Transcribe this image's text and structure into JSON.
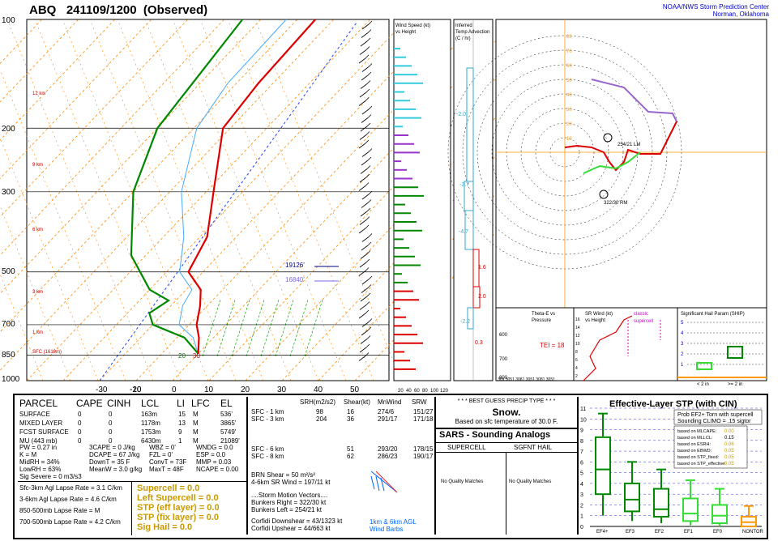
{
  "header": {
    "title": "ABQ   241109/1200  (Observed)",
    "org_line1": "NOAA/NWS Storm Prediction Center",
    "org_line2": "Norman, Oklahoma"
  },
  "skewt": {
    "pressure_labels": [
      "100",
      "200",
      "300",
      "500",
      "700",
      "850",
      "1000"
    ],
    "temp_labels": [
      "-30",
      "-20",
      "-10",
      "0",
      "10",
      "20",
      "30",
      "40",
      "50"
    ],
    "height_labels": [
      "12 km",
      "9 km",
      "6 km",
      "3 km",
      "1 km",
      "SFC (1619m)"
    ],
    "sfc_dewpoint": "20",
    "sfc_temp": "30",
    "legend": [
      {
        "value": "19126'",
        "color": "#00008b"
      },
      {
        "value": "16840'",
        "color": "#7b68ee"
      }
    ]
  },
  "wind_panel": {
    "title_line1": "Wind Speed (kt)",
    "title_line2": "vs Height",
    "axis": [
      "20",
      "40",
      "60",
      "80",
      "100",
      "120"
    ]
  },
  "advection_panel": {
    "title_line1": "Inferred",
    "title_line2": "Temp Advection",
    "title_line3": "(C / hr)",
    "values": [
      "-2.0",
      "-2.7",
      "-4.7",
      "1.6",
      "2.0",
      "-2.2",
      "0.3"
    ]
  },
  "hodograph": {
    "ring_labels": [
      "10",
      "20",
      "30",
      "40",
      "50",
      "60",
      "70",
      "80"
    ],
    "bunkers_left": "254/21 LM",
    "bunkers_right": "322/30 RM",
    "marks": [
      "2",
      "3",
      "4",
      "6",
      "7",
      "8",
      "9",
      "10",
      "1"
    ]
  },
  "theta_panel": {
    "title_line1": "Theta-E vs",
    "title_line2": "Pressure",
    "tei": "TEI = 18",
    "ticks": [
      "600",
      "700",
      "800"
    ],
    "bottom": "309 3051 3081 3051 3081 3051"
  },
  "srwind_panel": {
    "title_line1": "SR Wind (kt)",
    "title_line2": "vs Height",
    "classic": "classic",
    "supercell": "supercell",
    "ticks": [
      "16",
      "14",
      "12",
      "10",
      "8",
      "6",
      "4",
      "2"
    ]
  },
  "ship_panel": {
    "title": "Significant Hail Param (SHIP)",
    "ticks": [
      "5",
      "4",
      "3",
      "2",
      "1"
    ],
    "xlabels": [
      "< 2 in",
      ">= 2 in"
    ]
  },
  "parcel_table": {
    "headers": [
      "PARCEL",
      "CAPE",
      "CINH",
      "LCL",
      "LI",
      "LFC",
      "EL"
    ],
    "rows": [
      [
        "SURFACE",
        "0",
        "0",
        "163m",
        "15",
        "M",
        "536'"
      ],
      [
        "MIXED LAYER",
        "0",
        "0",
        "1178m",
        "13",
        "M",
        "3865'"
      ],
      [
        "FCST SURFACE",
        "0",
        "0",
        "1753m",
        "9",
        "M",
        "5749'"
      ],
      [
        "MU   (443 mb)",
        "0",
        "0",
        "6430m",
        "1",
        "M",
        "21089'"
      ]
    ],
    "params": [
      [
        "PW = 0.27 in",
        "3CAPE = 0 J/kg",
        "WNDG = 0.0"
      ],
      [
        "K = M",
        "DCAPE = 67 J/kg",
        "ESP = 0.0"
      ],
      [
        "MidRH = 34%",
        "DownT = 35 F",
        "MMP = 0.03"
      ],
      [
        "LowRH = 63%",
        "MeanW = 3.0 g/kg",
        "NCAPE = 0.00"
      ]
    ],
    "params_mid": [
      "WBZ = 0'",
      "FZL = 0'",
      "ConvT = 73F",
      "MaxT = 48F"
    ],
    "sig_severe": "Sig Severe = 0 m3/s3",
    "lapse": [
      "Sfc-3km Agl Lapse Rate = 3.1 C/km",
      "3-6km Agl Lapse Rate =   4.6 C/km",
      "850-500mb Lapse Rate =   M",
      "700-500mb Lapse Rate =  4.2 C/km"
    ],
    "composite": [
      "Supercell = 0.0",
      "Left Supercell = 0.0",
      "STP (eff layer) = 0.0",
      "STP (fix layer) = 0.0",
      "Sig Hail = 0.0"
    ]
  },
  "kinematic": {
    "headers": [
      "SRH(m2/s2)",
      "Shear(kt)",
      "MnWind",
      "SRW"
    ],
    "rows": [
      [
        "SFC - 1 km",
        "98",
        "16",
        "274/6",
        "151/27"
      ],
      [
        "SFC - 3 km",
        "204",
        "36",
        "291/17",
        "171/18"
      ],
      [
        "SFC - 6 km",
        "",
        "51",
        "293/20",
        "178/15"
      ],
      [
        "SFC - 8 km",
        "",
        "62",
        "286/23",
        "190/17"
      ]
    ],
    "brn_shear": "BRN Shear =  50 m²/s²",
    "sr_wind": "4-6km SR Wind =        197/11 kt",
    "storm_motion_title": "....Storm Motion Vectors....",
    "bunkers_right": "Bunkers Right =      322/30 kt",
    "bunkers_left": "Bunkers Left =        254/21 kt",
    "corfidi_down": "Corfidi Downshear = 43/1323 kt",
    "corfidi_up": "Corfidi Upshear =      44/663 kt",
    "barb_label_1": "1km & 6km AGL",
    "barb_label_2": "Wind Barbs"
  },
  "precip": {
    "title": "* * * BEST GUESS PRECIP TYPE * * *",
    "type": "Snow.",
    "note": "Based on sfc temperature of 30.0 F."
  },
  "sars": {
    "title": "SARS - Sounding Analogs",
    "col1": "SUPERCELL",
    "col2": "SGFNT HAIL",
    "col1_val": "No Quality Matches",
    "col2_val": "No Quality Matches"
  },
  "stp_panel": {
    "title": "Effective-Layer STP (with CIN)",
    "prob_line1": "Prob EF2+ Torn with supercell",
    "prob_line2": "Sounding CLIMO = .15 sigtor",
    "based": [
      [
        "based on MLCAPE:",
        "0.00"
      ],
      [
        "based on MLLCL:",
        "0.15"
      ],
      [
        "based on ESRH:",
        "0.06"
      ],
      [
        "based on EBWD:",
        "0.05"
      ],
      [
        "based on STP_fixed:",
        "0.05"
      ],
      [
        "based on STP_effective:",
        "0.05"
      ]
    ],
    "y_ticks": [
      "11",
      "10",
      "9",
      "8",
      "7",
      "6",
      "5",
      "4",
      "3",
      "2",
      "1",
      "0"
    ],
    "categories": [
      "EF4+",
      "EF3",
      "EF2",
      "EF1",
      "EF0",
      "NONTOR"
    ]
  },
  "colors": {
    "temperature": "#dd0000",
    "dewpoint": "#008800",
    "wetbulb": "#44aaff",
    "isotherm": "#ff8800",
    "mixing_ratio": "#00aa00",
    "frame": "#000000",
    "stp_box": "#008800",
    "composite_text": "#c89a00"
  },
  "chart_data": [
    {
      "type": "line",
      "title": "Skew-T log-p",
      "xlabel": "Temperature (C)",
      "ylabel": "Pressure (mb)",
      "xlim": [
        -30,
        50
      ],
      "ylim": [
        1000,
        100
      ],
      "series": [
        {
          "name": "Temperature",
          "points": [
            [
              0,
              842
            ],
            [
              -4,
              760
            ],
            [
              -8,
              700
            ],
            [
              -12,
              620
            ],
            [
              -16,
              560
            ],
            [
              -24,
              500
            ],
            [
              -28,
              400
            ],
            [
              -38,
              300
            ],
            [
              -52,
              200
            ],
            [
              -54,
              150
            ],
            [
              -55,
              100
            ]
          ]
        },
        {
          "name": "Dewpoint",
          "points": [
            [
              0,
              842
            ],
            [
              -8,
              760
            ],
            [
              -20,
              700
            ],
            [
              -24,
              650
            ],
            [
              -22,
              600
            ],
            [
              -30,
              560
            ],
            [
              -44,
              450
            ],
            [
              -60,
              300
            ],
            [
              -70,
              200
            ],
            [
              -75,
              100
            ]
          ]
        }
      ]
    },
    {
      "type": "bar",
      "title": "Effective-Layer STP (with CIN)",
      "categories": [
        "EF4+",
        "EF3",
        "EF2",
        "EF1",
        "EF0",
        "NONTOR"
      ],
      "series": [
        {
          "name": "10th pct",
          "values": [
            1.0,
            0.5,
            0.3,
            0.1,
            0.0,
            0.0
          ]
        },
        {
          "name": "25th pct",
          "values": [
            3.0,
            1.4,
            0.9,
            0.5,
            0.3,
            0.0
          ]
        },
        {
          "name": "median",
          "values": [
            5.3,
            2.5,
            1.6,
            1.2,
            1.0,
            0.4
          ]
        },
        {
          "name": "75th pct",
          "values": [
            8.3,
            4.0,
            3.5,
            2.6,
            2.0,
            0.9
          ]
        },
        {
          "name": "90th pct",
          "values": [
            10.5,
            6.0,
            5.3,
            4.3,
            3.5,
            1.9
          ]
        }
      ],
      "ylim": [
        0,
        11
      ]
    }
  ]
}
